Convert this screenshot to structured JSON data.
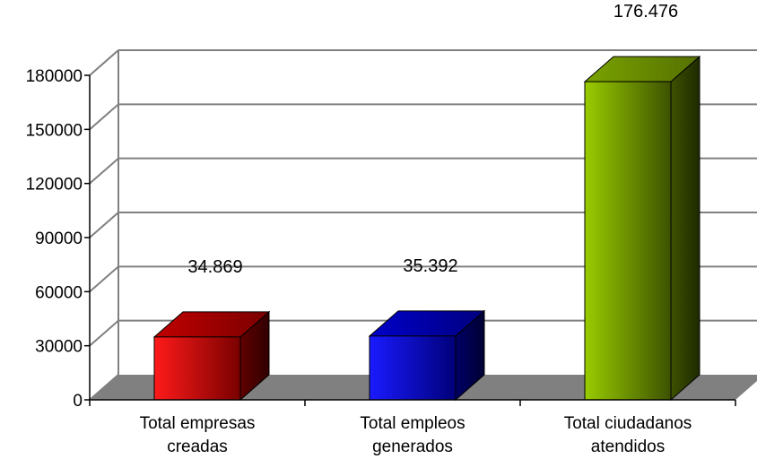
{
  "chart_data": {
    "type": "bar",
    "style": "3d-column",
    "categories": [
      [
        "Total empresas",
        "creadas"
      ],
      [
        "Total empleos",
        "generados"
      ],
      [
        "Total ciudadanos",
        "atendidos"
      ]
    ],
    "values": [
      34869,
      35392,
      176476
    ],
    "data_labels": [
      "34.869",
      "35.392",
      "176.476"
    ],
    "bar_colors": [
      "#ff0000",
      "#0000ff",
      "#99cc00"
    ],
    "ylim": [
      0,
      180000
    ],
    "yticks": [
      "0",
      "30000",
      "60000",
      "90000",
      "120000",
      "150000",
      "180000"
    ],
    "grid": true,
    "legend": "none",
    "floor_color": "#808080"
  }
}
